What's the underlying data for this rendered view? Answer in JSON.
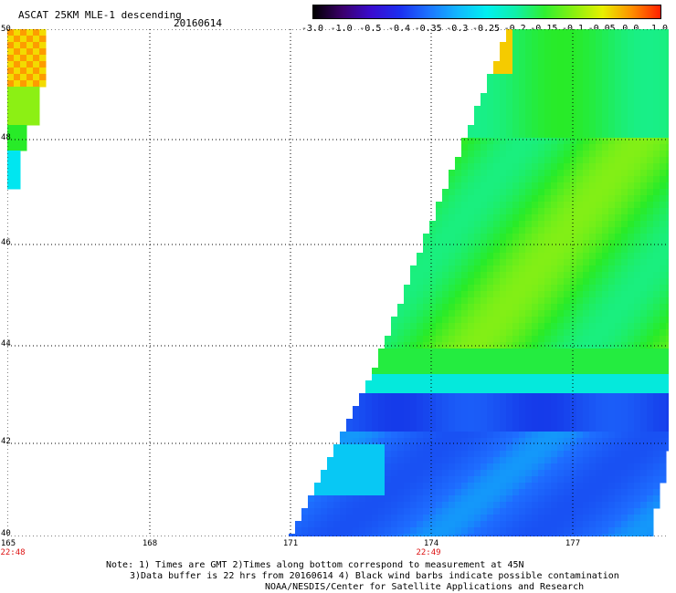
{
  "header": {
    "title": "ASCAT 25KM MLE-1 descending",
    "date": "20160614"
  },
  "colorbar": {
    "labels": [
      "-3.0",
      "-1.0",
      "-0.5",
      "-0.4",
      "-0.35",
      "-0.3",
      "-0.25",
      "-0.2",
      "-0.15",
      "-0.1",
      "-0.05",
      "0.0",
      "1.0"
    ],
    "colors": [
      "#000000",
      "#3b006b",
      "#3a0bd0",
      "#1c2ff0",
      "#1c74ff",
      "#12b8ff",
      "#00f0f0",
      "#10f0a8",
      "#30f030",
      "#88f010",
      "#e8f000",
      "#ff9000",
      "#ff2000"
    ]
  },
  "axes": {
    "y_labels": [
      "50",
      "48",
      "46",
      "44",
      "42",
      "40"
    ],
    "x_labels": [
      "165",
      "168",
      "171",
      "174",
      "177"
    ]
  },
  "time_labels": [
    "22:48",
    "22:49"
  ],
  "notes": [
    "Note: 1) Times are GMT 2)Times along bottom correspond to measurement at 45N",
    "3)Data buffer is 22 hrs from 20160614 4) Black wind barbs indicate possible contamination",
    "NOAA/NESDIS/Center for Satellite Applications and Research"
  ]
}
